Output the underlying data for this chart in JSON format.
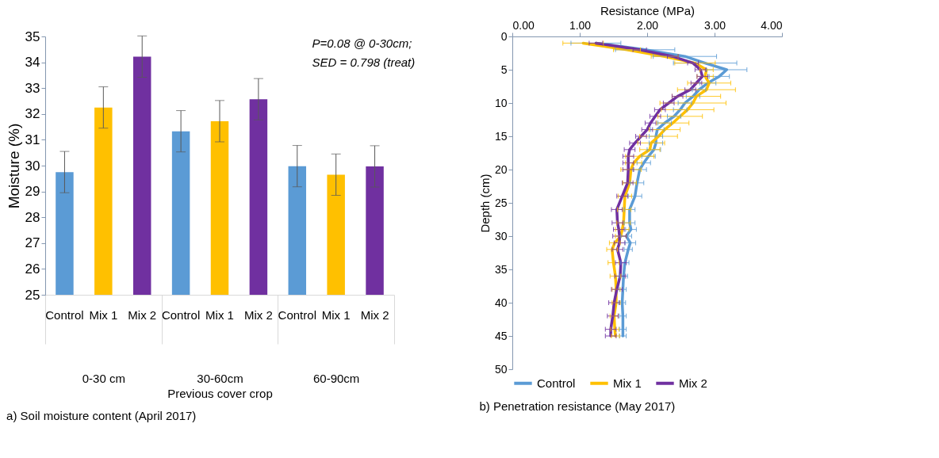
{
  "chart_data": [
    {
      "type": "bar",
      "title": "a) Soil moisture content (April 2017)",
      "xlabel": "Previous cover crop",
      "ylabel": "Moisture (%)",
      "categories": [
        "0-30 cm",
        "30-60cm",
        "60-90cm"
      ],
      "series": [
        {
          "name": "Control",
          "color": "#5b9bd5",
          "values": [
            29.75,
            31.33,
            29.98
          ],
          "errors": [
            0.8,
            0.8,
            0.8
          ]
        },
        {
          "name": "Mix 1",
          "color": "#ffc000",
          "values": [
            32.25,
            31.72,
            29.65
          ],
          "errors": [
            0.8,
            0.8,
            0.8
          ]
        },
        {
          "name": "Mix 2",
          "color": "#7030a0",
          "values": [
            34.22,
            32.57,
            29.97
          ],
          "errors": [
            0.8,
            0.8,
            0.8
          ]
        }
      ],
      "ylim": [
        25,
        35
      ],
      "yticks": [
        25,
        26,
        27,
        28,
        29,
        30,
        31,
        32,
        33,
        34,
        35
      ],
      "grid": false,
      "legend": false,
      "annotations": [
        "P=0.08 @ 0-30cm;",
        "SED = 0.798 (treat)"
      ]
    },
    {
      "type": "line",
      "title": "b) Penetration resistance (May 2017)",
      "xlabel": "Resistance (MPa)",
      "ylabel": "Depth (cm)",
      "xlim": [
        0,
        4
      ],
      "xticks": [
        {
          "value": 0,
          "label": "0.00"
        },
        {
          "value": 1,
          "label": "1.00"
        },
        {
          "value": 2,
          "label": "2.00"
        },
        {
          "value": 3,
          "label": "3.00"
        },
        {
          "value": 4,
          "label": "4.00"
        }
      ],
      "ylim": [
        50,
        0
      ],
      "yticks": [
        0,
        5,
        10,
        15,
        20,
        25,
        30,
        35,
        40,
        45,
        50
      ],
      "grid": false,
      "legend": "bottom",
      "series": [
        {
          "name": "Control",
          "color": "#5b9bd5",
          "x": [
            1.24,
            1.97,
            2.56,
            2.86,
            3.18,
            3.07,
            2.9,
            2.77,
            2.68,
            2.56,
            2.49,
            2.4,
            2.26,
            2.15,
            2.13,
            2.13,
            2.1,
            2.02,
            1.95,
            1.89,
            1.85,
            1.82,
            1.74,
            1.74,
            1.76,
            1.69,
            1.75,
            1.72,
            1.67,
            1.65,
            1.64,
            1.63,
            1.64,
            1.64,
            1.64
          ],
          "values": [
            1,
            2,
            3,
            4,
            5,
            6,
            7,
            8,
            9,
            10,
            11,
            12,
            13,
            14,
            15,
            16,
            17,
            18,
            19,
            20,
            22,
            24,
            26,
            28,
            29,
            30,
            31,
            32,
            34,
            36,
            38,
            40,
            42,
            44,
            45
          ],
          "xerrors": [
            0.37,
            0.44,
            0.47,
            0.47,
            0.3,
            0.15,
            0.12,
            0.1,
            0.1,
            0.1,
            0.1,
            0.1,
            0.1,
            0.1,
            0.1,
            0.1,
            0.1,
            0.1,
            0.1,
            0.1,
            0.1,
            0.1,
            0.08,
            0.08,
            0.08,
            0.08,
            0.08,
            0.06,
            0.06,
            0.06,
            0.05,
            0.05,
            0.05,
            0.05,
            0.05
          ]
        },
        {
          "name": "Mix 1",
          "color": "#ffc000",
          "x": [
            1.05,
            1.7,
            2.26,
            2.71,
            2.88,
            2.86,
            2.92,
            2.88,
            2.73,
            2.68,
            2.6,
            2.49,
            2.38,
            2.26,
            2.17,
            2.06,
            2.04,
            1.89,
            1.8,
            1.76,
            1.74,
            1.67,
            1.66,
            1.65,
            1.63,
            1.61,
            1.52,
            1.48,
            1.5,
            1.53,
            1.54,
            1.54,
            1.51,
            1.52,
            1.53
          ],
          "values": [
            1,
            2,
            3,
            4,
            5,
            6,
            7,
            8,
            9,
            10,
            11,
            12,
            13,
            14,
            15,
            16,
            17,
            18,
            19,
            20,
            22,
            24,
            26,
            28,
            29,
            30,
            31,
            32,
            34,
            36,
            38,
            40,
            42,
            44,
            45
          ],
          "xerrors": [
            0.3,
            0.2,
            0.2,
            0.3,
            0.1,
            0.12,
            0.32,
            0.43,
            0.36,
            0.49,
            0.39,
            0.33,
            0.24,
            0.23,
            0.28,
            0.2,
            0.15,
            0.21,
            0.12,
            0.15,
            0.1,
            0.1,
            0.1,
            0.1,
            0.1,
            0.08,
            0.08,
            0.08,
            0.08,
            0.08,
            0.06,
            0.06,
            0.06,
            0.06,
            0.06
          ]
        },
        {
          "name": "Mix 2",
          "color": "#7030a0",
          "x": [
            1.24,
            1.89,
            2.38,
            2.68,
            2.79,
            2.82,
            2.73,
            2.64,
            2.45,
            2.32,
            2.19,
            2.12,
            2.05,
            2.0,
            1.91,
            1.82,
            1.74,
            1.72,
            1.72,
            1.72,
            1.71,
            1.63,
            1.55,
            1.56,
            1.58,
            1.59,
            1.59,
            1.56,
            1.61,
            1.6,
            1.55,
            1.51,
            1.49,
            1.46,
            1.46
          ],
          "values": [
            1,
            2,
            3,
            4,
            5,
            6,
            7,
            8,
            9,
            10,
            11,
            12,
            13,
            14,
            15,
            16,
            17,
            18,
            19,
            20,
            22,
            24,
            26,
            28,
            29,
            30,
            31,
            32,
            34,
            36,
            38,
            40,
            42,
            44,
            45
          ],
          "xerrors": [
            0.1,
            0.1,
            0.08,
            0.08,
            0.08,
            0.08,
            0.08,
            0.08,
            0.08,
            0.08,
            0.08,
            0.08,
            0.08,
            0.08,
            0.08,
            0.08,
            0.08,
            0.08,
            0.08,
            0.08,
            0.08,
            0.08,
            0.08,
            0.08,
            0.08,
            0.1,
            0.08,
            0.08,
            0.08,
            0.08,
            0.08,
            0.08,
            0.08,
            0.08,
            0.08
          ]
        }
      ]
    }
  ]
}
